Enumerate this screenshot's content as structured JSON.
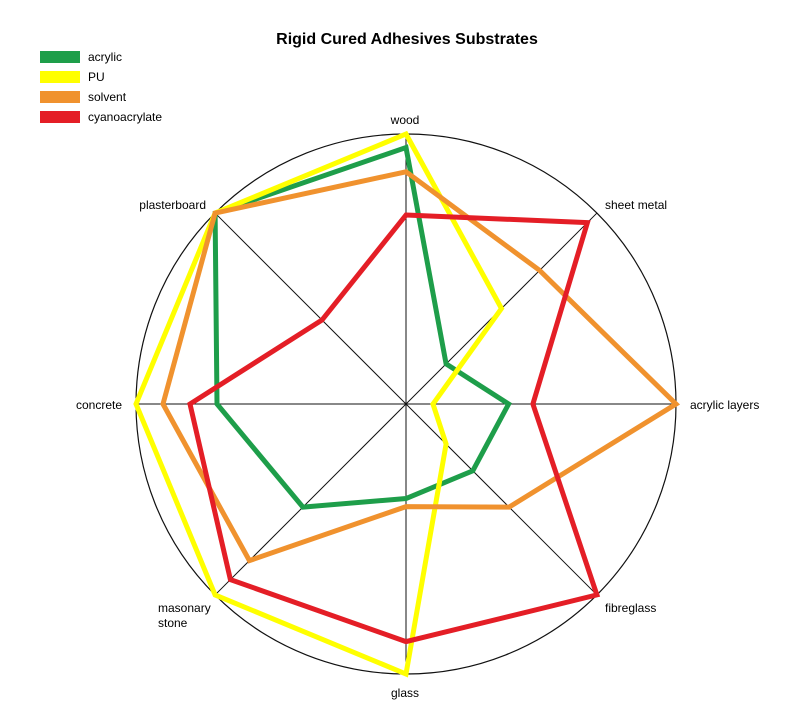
{
  "chart_data": {
    "type": "radar",
    "title": "Rigid Cured Adhesives Substrates",
    "axes": [
      "wood",
      "sheet metal",
      "acrylic layers",
      "fibreglass",
      "glass",
      "masonary stone",
      "concrete",
      "plasterboard"
    ],
    "range": [
      0,
      10
    ],
    "grid": "outer circle with radial spokes",
    "legend": "top-left",
    "series": [
      {
        "name": "acrylic",
        "color": "#1e9e4a",
        "values": [
          9.5,
          2.1,
          3.8,
          3.5,
          3.5,
          5.4,
          7.0,
          10.0
        ]
      },
      {
        "name": "PU",
        "color": "#ffff00",
        "values": [
          10.0,
          5.0,
          1.0,
          2.1,
          10.0,
          10.0,
          10.0,
          10.0
        ]
      },
      {
        "name": "solvent",
        "color": "#f0922e",
        "values": [
          8.6,
          7.0,
          10.0,
          5.4,
          3.8,
          8.2,
          9.0,
          10.0
        ]
      },
      {
        "name": "cyanoacrylate",
        "color": "#e41e26",
        "values": [
          7.0,
          9.5,
          4.7,
          10.0,
          8.8,
          9.2,
          8.0,
          4.4
        ]
      }
    ]
  }
}
